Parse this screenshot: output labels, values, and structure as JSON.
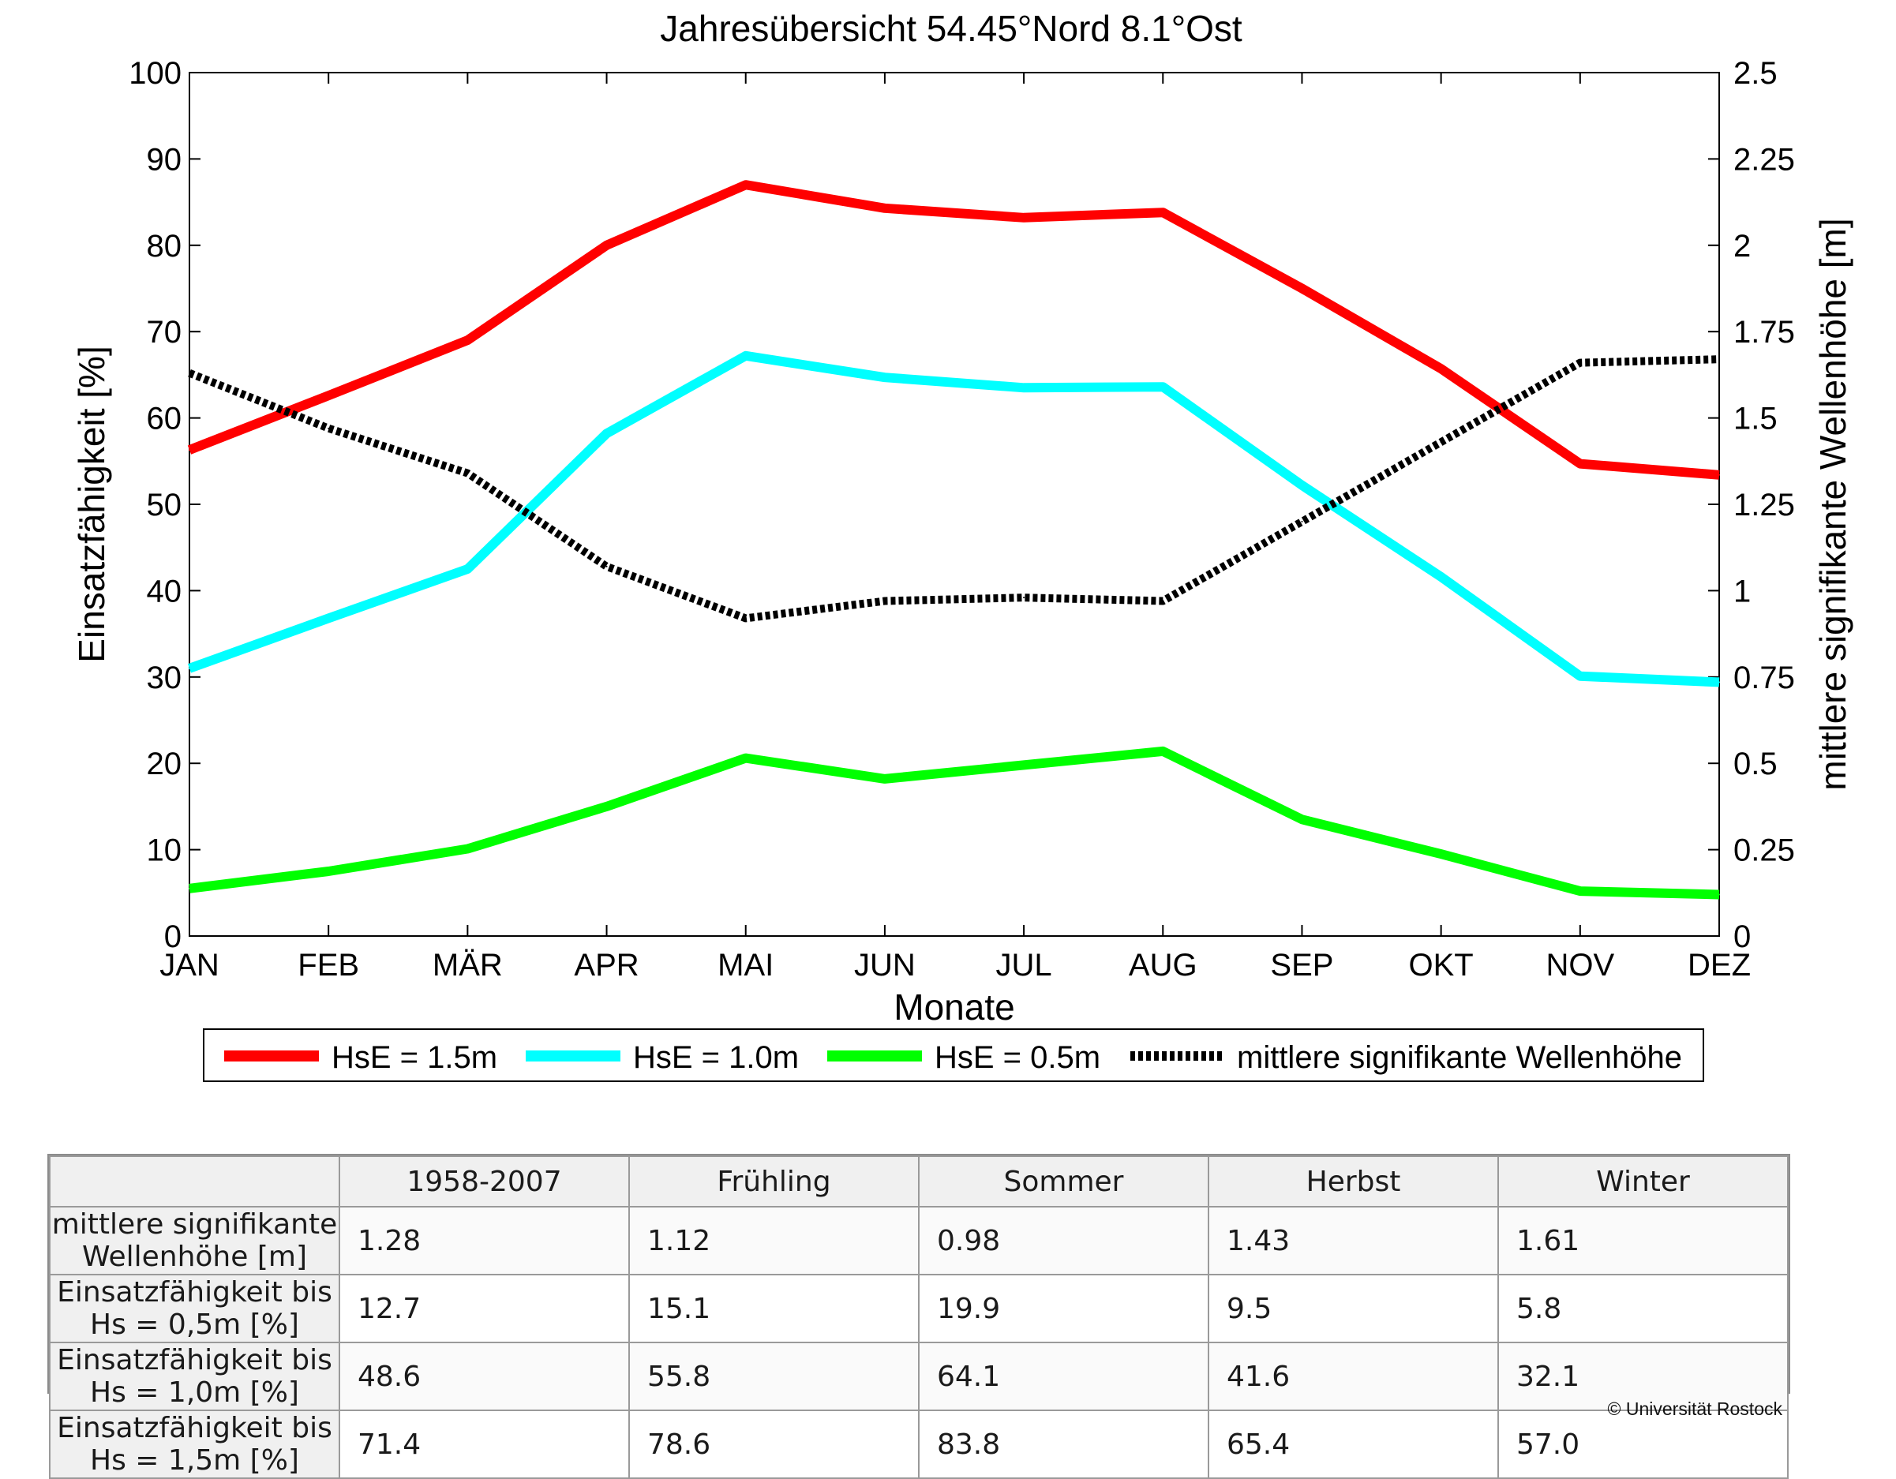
{
  "chart_data": {
    "type": "line",
    "title": "Jahresübersicht  54.45°Nord  8.1°Ost",
    "xlabel": "Monate",
    "ylabel": "Einsatzfähigkeit [%]",
    "y2label": "mittlere signifikante Wellenhöhe [m]",
    "categories": [
      "JAN",
      "FEB",
      "MÄR",
      "APR",
      "MAI",
      "JUN",
      "JUL",
      "AUG",
      "SEP",
      "OKT",
      "NOV",
      "DEZ"
    ],
    "ylim": [
      0,
      100
    ],
    "yticks": [
      "0",
      "10",
      "20",
      "30",
      "40",
      "50",
      "60",
      "70",
      "80",
      "90",
      "100"
    ],
    "y2lim": [
      0,
      2.5
    ],
    "y2ticks": [
      "0",
      "0.25",
      "0.5",
      "0.75",
      "1",
      "1.25",
      "1.5",
      "1.75",
      "2",
      "2.25",
      "2.5"
    ],
    "series": [
      {
        "name": "HsE = 1.5m",
        "axis": "left",
        "color": "#ff0000",
        "style": "solid",
        "values": [
          56.3,
          62.6,
          69.0,
          80.0,
          87.0,
          84.3,
          83.2,
          83.8,
          75.0,
          65.7,
          54.7,
          53.4
        ]
      },
      {
        "name": "HsE = 1.0m",
        "axis": "left",
        "color": "#00ffff",
        "style": "solid",
        "values": [
          31.0,
          36.8,
          42.5,
          58.2,
          67.2,
          64.7,
          63.5,
          63.6,
          52.2,
          41.6,
          30.1,
          29.4
        ]
      },
      {
        "name": "HsE = 0.5m",
        "axis": "left",
        "color": "#00ff00",
        "style": "solid",
        "values": [
          5.5,
          7.5,
          10.1,
          15.0,
          20.6,
          18.2,
          19.8,
          21.4,
          13.5,
          9.5,
          5.2,
          4.8
        ]
      },
      {
        "name": "mittlere signifikante Wellenhöhe",
        "axis": "right",
        "color": "#000000",
        "style": "dotted",
        "values": [
          1.63,
          1.47,
          1.34,
          1.07,
          0.92,
          0.97,
          0.98,
          0.97,
          1.2,
          1.43,
          1.66,
          1.67
        ]
      }
    ],
    "legend_position": "bottom"
  },
  "table": {
    "headers": [
      "1958-2007",
      "Frühling",
      "Sommer",
      "Herbst",
      "Winter"
    ],
    "rows": [
      {
        "label": "mittlere signifikante Wellenhöhe [m]",
        "values": [
          "1.28",
          "1.12",
          "0.98",
          "1.43",
          "1.61"
        ]
      },
      {
        "label": "Einsatzfähigkeit bis Hs = 0,5m [%]",
        "values": [
          "12.7",
          "15.1",
          "19.9",
          "9.5",
          "5.8"
        ]
      },
      {
        "label": "Einsatzfähigkeit bis Hs = 1,0m [%]",
        "values": [
          "48.6",
          "55.8",
          "64.1",
          "41.6",
          "32.1"
        ]
      },
      {
        "label": "Einsatzfähigkeit bis Hs = 1,5m [%]",
        "values": [
          "71.4",
          "78.6",
          "83.8",
          "65.4",
          "57.0"
        ]
      }
    ]
  },
  "copyright": "© Universität Rostock"
}
